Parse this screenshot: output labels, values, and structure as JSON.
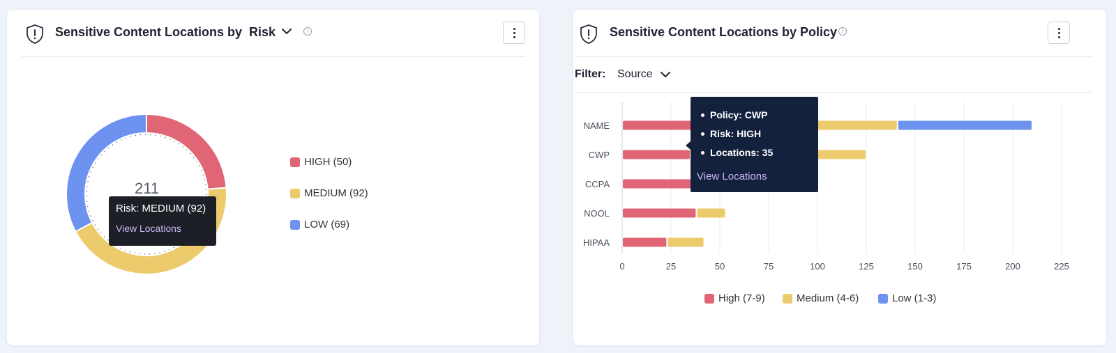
{
  "colors": {
    "high": "#e06675",
    "medium": "#eccb6c",
    "low": "#6d92f0",
    "tooltip_bg": "#1d1f26",
    "tooltip_navy": "#14213d",
    "link": "#c7b8f5"
  },
  "left_panel": {
    "title": "Sensitive Content Locations by",
    "dropdown_value": "Risk",
    "info_icon": "info-icon",
    "menu_icon": "kebab-menu-icon",
    "donut_total": "211",
    "legend": [
      {
        "label": "HIGH (50)",
        "color": "#e06675"
      },
      {
        "label": "MEDIUM (92)",
        "color": "#eccb6c"
      },
      {
        "label": "LOW (69)",
        "color": "#6d92f0"
      }
    ],
    "tooltip": {
      "text": "Risk: MEDIUM (92)",
      "link": "View Locations"
    }
  },
  "right_panel": {
    "title": "Sensitive Content Locations by Policy",
    "info_icon": "info-icon",
    "menu_icon": "kebab-menu-icon",
    "filter_label": "Filter:",
    "filter_value": "Source",
    "tooltip": {
      "items": [
        "Policy: CWP",
        "Risk: HIGH",
        "Locations: 35"
      ],
      "link": "View Locations"
    },
    "legend": [
      {
        "label": "High (7-9)",
        "color": "#e06675"
      },
      {
        "label": "Medium (4-6)",
        "color": "#eccb6c"
      },
      {
        "label": "Low (1-3)",
        "color": "#6d92f0"
      }
    ]
  },
  "chart_data": [
    {
      "type": "pie",
      "categories": [
        "HIGH",
        "MEDIUM",
        "LOW"
      ],
      "values": [
        50,
        92,
        69
      ],
      "total": 211
    },
    {
      "type": "bar",
      "orientation": "horizontal",
      "stacked": true,
      "categories": [
        "NAME",
        "CWP",
        "CCPA",
        "NOOL",
        "HIPAA"
      ],
      "series": [
        {
          "name": "High (7-9)",
          "values": [
            70,
            35,
            70,
            38,
            23
          ]
        },
        {
          "name": "Medium (4-6)",
          "values": [
            71,
            90,
            0,
            15,
            19
          ]
        },
        {
          "name": "Low (1-3)",
          "values": [
            69,
            0,
            0,
            0,
            0
          ]
        }
      ],
      "xticks": [
        "0",
        "25",
        "50",
        "75",
        "100",
        "125",
        "150",
        "175",
        "200",
        "225"
      ],
      "xlim": [
        0,
        225
      ],
      "grid": "vertical"
    }
  ]
}
